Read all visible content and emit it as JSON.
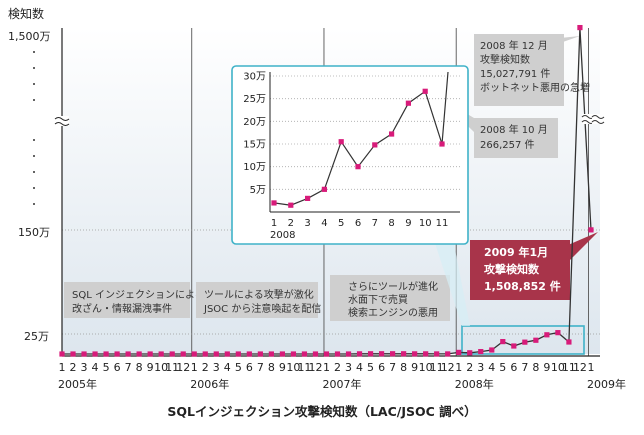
{
  "chart_data": {
    "type": "line",
    "title": "SQLインジェクション攻撃検知数（LAC/JSOC 調べ）",
    "ylabel": "検知数",
    "y_ticks": [
      "1,500万",
      "150万",
      "25万"
    ],
    "x_year_labels": [
      "2005年",
      "2006年",
      "2007年",
      "2008年",
      "2009年"
    ],
    "x_month_labels": [
      "1",
      "2",
      "3",
      "4",
      "5",
      "6",
      "7",
      "8",
      "9",
      "10",
      "11",
      "12"
    ],
    "axis_break": true,
    "series": [
      {
        "color": "#d81b7a",
        "x": [
          "2005-01",
          "2005-02",
          "2005-03",
          "2005-04",
          "2005-05",
          "2005-06",
          "2005-07",
          "2005-08",
          "2005-09",
          "2005-10",
          "2005-11",
          "2005-12",
          "2006-01",
          "2006-02",
          "2006-03",
          "2006-04",
          "2006-05",
          "2006-06",
          "2006-07",
          "2006-08",
          "2006-09",
          "2006-10",
          "2006-11",
          "2006-12",
          "2007-01",
          "2007-02",
          "2007-03",
          "2007-04",
          "2007-05",
          "2007-06",
          "2007-07",
          "2007-08",
          "2007-09",
          "2007-10",
          "2007-11",
          "2007-12",
          "2008-01",
          "2008-02",
          "2008-03",
          "2008-04",
          "2008-05",
          "2008-06",
          "2008-07",
          "2008-08",
          "2008-09",
          "2008-10",
          "2008-11",
          "2008-12",
          "2009-01"
        ],
        "values": [
          0,
          0,
          0,
          0,
          0,
          0,
          0,
          0,
          0,
          0,
          0,
          0,
          0,
          0,
          0,
          0,
          0,
          0,
          0,
          0,
          0,
          0,
          0,
          0,
          0,
          0,
          0,
          2000,
          3000,
          3000,
          3000,
          3000,
          2000,
          2000,
          1000,
          1000,
          20000,
          15000,
          30000,
          50000,
          155000,
          100000,
          148000,
          172000,
          240000,
          266257,
          150000,
          15027791,
          1508852
        ]
      }
    ],
    "inset": {
      "type": "line",
      "year_label": "2008",
      "x": [
        1,
        2,
        3,
        4,
        5,
        6,
        7,
        8,
        9,
        10,
        11
      ],
      "y_ticks": [
        "30万",
        "25万",
        "20万",
        "15万",
        "10万",
        "5万"
      ],
      "ylim": [
        0,
        300000
      ],
      "values": [
        20000,
        15000,
        30000,
        50000,
        155000,
        100000,
        148000,
        172000,
        240000,
        266257,
        150000
      ]
    },
    "annotations": [
      {
        "lines": [
          "2008 年 12 月",
          "攻撃検知数",
          "15,027,791 件",
          "ボットネット悪用の急増"
        ]
      },
      {
        "lines": [
          "2008 年 10 月",
          "266,257 件"
        ]
      },
      {
        "lines": [
          "2009 年1月",
          "攻撃検知数",
          "1,508,852 件"
        ],
        "highlight": "#a8344a"
      },
      {
        "lines": [
          "SQL インジェクションによる",
          "改ざん・情報漏洩事件"
        ]
      },
      {
        "lines": [
          "ツールによる攻撃が激化",
          "JSOC から注意喚起を配信"
        ]
      },
      {
        "lines": [
          "さらにツールが進化",
          "水面下で売買",
          "検索エンジンの悪用"
        ]
      }
    ],
    "colors": {
      "line": "#d81b7a",
      "marker": "#d81b7a",
      "inset_border": "#3fb2c8",
      "axis": "#222222"
    }
  }
}
